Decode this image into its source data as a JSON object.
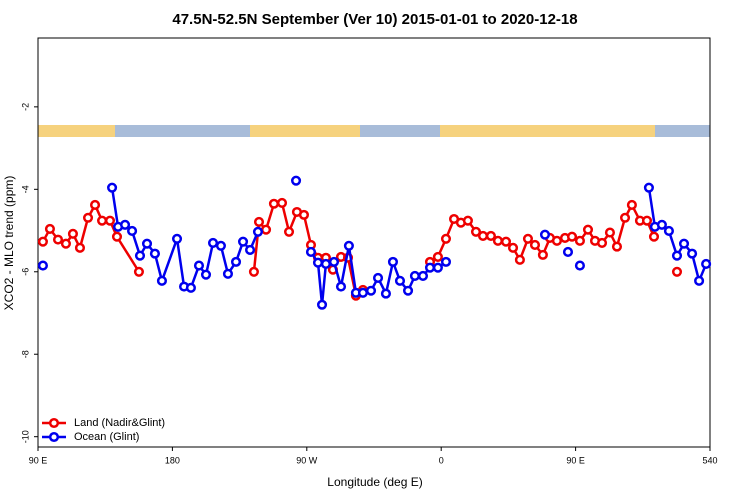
{
  "chart_data": {
    "type": "line",
    "title": "47.5N-52.5N September (Ver 10)   2015-01-01 to 2020-12-18",
    "x_label": "Longitude (deg E)",
    "y_label": "XCO2 - MLO trend (ppm)",
    "xlim": [
      90,
      540
    ],
    "ylim": [
      -10.25,
      -0.33
    ],
    "xticks": [
      {
        "value": 90,
        "label": "90 E"
      },
      180,
      {
        "value": 270,
        "label": "90 W"
      },
      {
        "value": 360,
        "label": "0"
      },
      {
        "value": 450,
        "label": "90 E"
      },
      540
    ],
    "yticks": [
      -2,
      -4,
      -6,
      -8,
      -10
    ],
    "legend": "bottom-left",
    "series": [
      {
        "name": "Land (Nadir&Glint)",
        "color": "#ee0000",
        "x": [
          93.3,
          98.0,
          103.4,
          108.7,
          113.4,
          118.1,
          123.5,
          128.2,
          132.9,
          138.2,
          142.9,
          157.6,
          null,
          234.6,
          238.0,
          242.7,
          248.0,
          253.4,
          258.1,
          263.4,
          268.1,
          272.8,
          277.5,
          282.8,
          287.5,
          292.9,
          297.6,
          302.9,
          307.6,
          null,
          352.5,
          357.8,
          363.2,
          368.6,
          373.2,
          377.9,
          383.3,
          388.0,
          393.3,
          398.0,
          403.4,
          408.1,
          412.7,
          418.1,
          422.8,
          428.1,
          432.8,
          437.5,
          442.9,
          447.6,
          452.9,
          458.3,
          463.0,
          467.7,
          473.0,
          477.7,
          483.1,
          487.7,
          493.1,
          497.8,
          502.5,
          null,
          517.9
        ],
        "values": [
          -5.27,
          -4.96,
          -5.22,
          -5.32,
          -5.08,
          -5.42,
          -4.69,
          -4.38,
          -4.76,
          -4.76,
          -5.15,
          -6.0,
          null,
          -6.0,
          -4.79,
          -4.98,
          -4.35,
          -4.33,
          -5.03,
          -4.55,
          -4.62,
          -5.35,
          -5.66,
          -5.66,
          -5.95,
          -5.64,
          -5.66,
          -6.58,
          -6.44,
          null,
          -5.76,
          -5.64,
          -5.2,
          -4.72,
          -4.81,
          -4.76,
          -5.03,
          -5.13,
          -5.13,
          -5.25,
          -5.27,
          -5.42,
          -5.71,
          -5.2,
          -5.35,
          -5.59,
          -5.18,
          -5.25,
          -5.18,
          -5.15,
          -5.25,
          -4.98,
          -5.25,
          -5.3,
          -5.05,
          -5.39,
          -4.69,
          -4.38,
          -4.76,
          -4.76,
          -5.15,
          null,
          -6.0
        ]
      },
      {
        "name": "Ocean (Glint)",
        "color": "#0000ee",
        "x": [
          93.3,
          null,
          139.6,
          143.6,
          148.3,
          153.0,
          158.3,
          163.0,
          168.3,
          173.0,
          183.1,
          187.8,
          192.4,
          197.8,
          202.5,
          207.2,
          212.5,
          217.2,
          222.6,
          227.3,
          232.0,
          237.3,
          null,
          262.8,
          null,
          272.8,
          277.5,
          280.2,
          282.8,
          288.2,
          292.9,
          298.2,
          302.9,
          307.6,
          313.0,
          317.7,
          323.0,
          327.7,
          332.4,
          337.8,
          342.4,
          347.8,
          352.5,
          357.8,
          363.2,
          null,
          429.5,
          null,
          444.9,
          null,
          452.9,
          null,
          499.1,
          503.1,
          507.8,
          512.5,
          517.9,
          522.6,
          528.0,
          532.7,
          537.4
        ],
        "values": [
          -5.85,
          null,
          -3.96,
          -4.91,
          -4.86,
          -5.01,
          -5.61,
          -5.32,
          -5.56,
          -6.22,
          -5.2,
          -6.36,
          -6.39,
          -5.85,
          -6.07,
          -5.3,
          -5.37,
          -6.05,
          -5.76,
          -5.27,
          -5.47,
          -5.03,
          null,
          -3.79,
          null,
          -5.52,
          -5.78,
          -6.8,
          -5.81,
          -5.76,
          -6.36,
          -5.37,
          -6.51,
          -6.51,
          -6.46,
          -6.15,
          -6.53,
          -5.76,
          -6.22,
          -6.46,
          -6.1,
          -6.1,
          -5.9,
          -5.9,
          -5.76,
          null,
          -5.1,
          null,
          -5.52,
          null,
          -5.85,
          null,
          -3.96,
          -4.91,
          -4.86,
          -5.01,
          -5.61,
          -5.32,
          -5.56,
          -6.22,
          -5.81
        ]
      }
    ]
  }
}
